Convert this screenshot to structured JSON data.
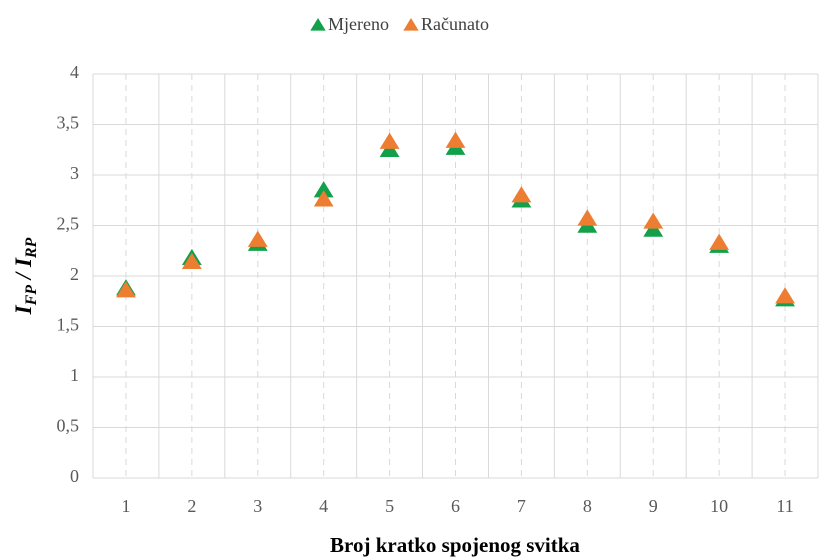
{
  "chart_data": {
    "type": "scatter",
    "xlabel": "Broj kratko spojenog svitka",
    "ylabel": [
      "I",
      "FP",
      " / I",
      "RP"
    ],
    "categories": [
      "1",
      "2",
      "3",
      "4",
      "5",
      "6",
      "7",
      "8",
      "9",
      "10",
      "11"
    ],
    "series": [
      {
        "name": "Mjereno",
        "color": "#12a04a",
        "values": [
          1.88,
          2.18,
          2.32,
          2.85,
          3.25,
          3.27,
          2.75,
          2.5,
          2.46,
          2.3,
          1.77
        ]
      },
      {
        "name": "Računato",
        "color": "#ed7d31",
        "values": [
          1.86,
          2.14,
          2.36,
          2.76,
          3.33,
          3.34,
          2.8,
          2.57,
          2.54,
          2.33,
          1.8
        ]
      }
    ],
    "ylim": [
      0,
      4
    ],
    "yticks": [
      0,
      {
        "value": 0.5,
        "label": "0,5"
      },
      1,
      {
        "value": 1.5,
        "label": "1,5"
      },
      2,
      {
        "value": 2.5,
        "label": "2,5"
      },
      3,
      {
        "value": 3.5,
        "label": "3,5"
      },
      4
    ],
    "grid": true,
    "legend": "top"
  }
}
